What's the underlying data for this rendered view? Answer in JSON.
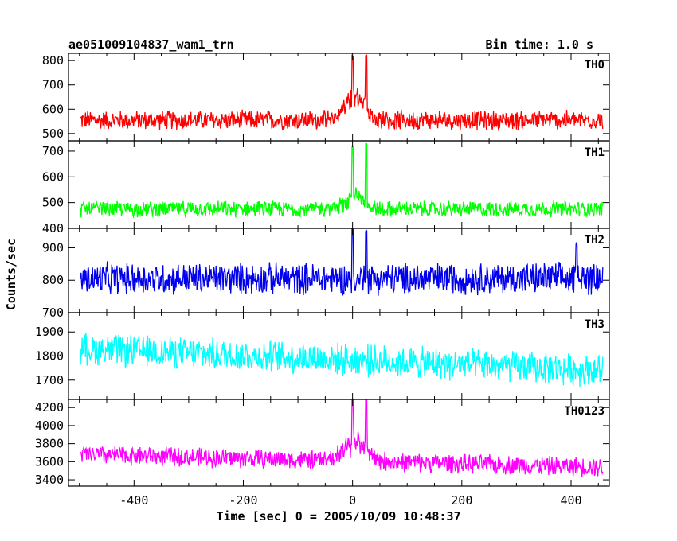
{
  "header": {
    "title": "ae051009104837_wam1_trn",
    "bin_time": "Bin time: 1.0 s"
  },
  "chart_data": {
    "type": "line",
    "title": "ae051009104837_wam1_trn",
    "subtitle": "Bin time: 1.0 s",
    "xlabel": "Time [sec] 0 = 2005/10/09 10:48:37",
    "ylabel": "Counts/sec",
    "xlim": [
      -520,
      470
    ],
    "x_ticks": [
      -400,
      -200,
      0,
      200,
      400
    ],
    "x_range_data": [
      -498,
      458
    ],
    "bin_time_s": 1.0,
    "panels": [
      {
        "name": "TH0",
        "color": "#ff0000",
        "ylim": [
          470,
          830
        ],
        "y_ticks": [
          500,
          600,
          700,
          800
        ],
        "baseline": 555,
        "noise_halfwidth": 45,
        "features": [
          {
            "type": "burst",
            "center": 5,
            "width": 40,
            "peak_excess": 100
          },
          {
            "type": "spike",
            "x": 0,
            "value": 820
          },
          {
            "type": "spike",
            "x": 25,
            "value": 825
          }
        ]
      },
      {
        "name": "TH1",
        "color": "#00ff00",
        "ylim": [
          400,
          740
        ],
        "y_ticks": [
          400,
          500,
          600,
          700
        ],
        "baseline": 475,
        "noise_halfwidth": 35,
        "features": [
          {
            "type": "burst",
            "center": 5,
            "width": 35,
            "peak_excess": 60
          },
          {
            "type": "spike",
            "x": 0,
            "value": 720
          },
          {
            "type": "spike",
            "x": 25,
            "value": 730
          }
        ]
      },
      {
        "name": "TH2",
        "color": "#0000ee",
        "ylim": [
          700,
          960
        ],
        "y_ticks": [
          700,
          800,
          900
        ],
        "baseline": 805,
        "noise_halfwidth": 55,
        "features": [
          {
            "type": "spike",
            "x": 0,
            "value": 960
          },
          {
            "type": "spike",
            "x": 25,
            "value": 955
          },
          {
            "type": "spike",
            "x": 410,
            "value": 915
          }
        ]
      },
      {
        "name": "TH3",
        "color": "#00ffff",
        "ylim": [
          1620,
          1980
        ],
        "y_ticks": [
          1700,
          1800,
          1900
        ],
        "baseline_start": 1830,
        "baseline_end": 1740,
        "noise_halfwidth": 75,
        "features": []
      },
      {
        "name": "TH0123",
        "color": "#ff00ff",
        "ylim": [
          3330,
          4290
        ],
        "y_ticks": [
          3400,
          3600,
          3800,
          4000,
          4200
        ],
        "baseline_start": 3680,
        "baseline_end": 3540,
        "noise_halfwidth": 120,
        "features": [
          {
            "type": "burst",
            "center": 5,
            "width": 40,
            "peak_excess": 250
          },
          {
            "type": "spike",
            "x": 0,
            "value": 4290
          },
          {
            "type": "spike",
            "x": 25,
            "value": 4290
          }
        ]
      }
    ]
  }
}
